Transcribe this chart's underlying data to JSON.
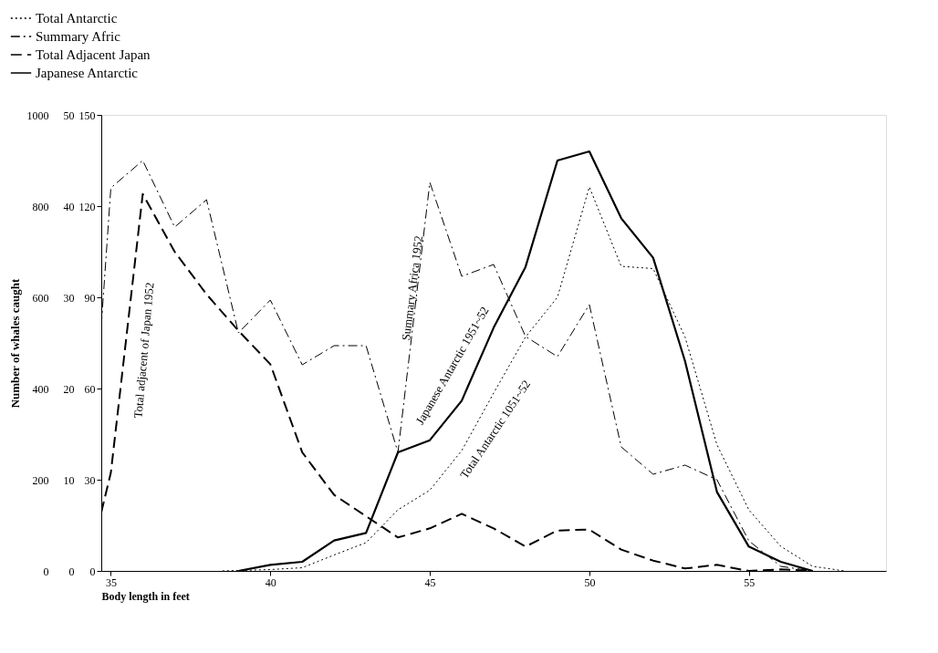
{
  "chart_data": {
    "type": "line",
    "xlabel": "Body length in feet",
    "ylabel": "Number of whales caught",
    "xlim": [
      34.7,
      59.3
    ],
    "xticks": [
      35,
      40,
      45,
      50,
      55
    ],
    "ylim": [
      0,
      1000
    ],
    "yticks": [
      0,
      200,
      400,
      600,
      800,
      1000
    ],
    "y2lim": [
      0,
      50
    ],
    "y2ticks": [
      0,
      10,
      20,
      30,
      40,
      50
    ],
    "y3lim": [
      0,
      150
    ],
    "y3ticks": [
      0,
      30,
      60,
      90,
      120,
      150
    ],
    "legend": "top left",
    "grid": false,
    "marker": "none",
    "series": [
      {
        "name": "Total Antarctic",
        "color": "#000000",
        "axis": "y",
        "line_style": "dotted",
        "x": [
          38.5,
          40,
          41,
          42,
          43,
          44,
          45,
          46,
          47,
          48,
          49,
          50,
          51,
          52,
          53,
          54,
          55,
          56,
          57,
          58
        ],
        "values": [
          0,
          3,
          7,
          35,
          62,
          134,
          177,
          264,
          390,
          513,
          600,
          842,
          668,
          663,
          513,
          277,
          134,
          54,
          10,
          0
        ]
      },
      {
        "name": "Summary Afric",
        "color": "#000000",
        "axis": "y2",
        "line_style": "dashdot",
        "x": [
          34.7,
          35,
          36,
          37,
          38,
          39,
          40,
          41,
          42,
          43,
          44,
          45,
          46,
          47,
          48,
          49,
          50,
          51,
          52,
          53,
          54,
          55,
          56,
          57
        ],
        "values": [
          26.9,
          42,
          45,
          37.7,
          40.7,
          26.1,
          29.7,
          22.6,
          24.7,
          24.7,
          13,
          42.6,
          32.3,
          33.6,
          25.7,
          23.5,
          29.2,
          13.6,
          10.6,
          11.6,
          10,
          3.3,
          0.5,
          0
        ]
      },
      {
        "name": "Total Adjacent Japan",
        "color": "#000000",
        "axis": "y3",
        "line_style": "dashed",
        "x": [
          34.7,
          35,
          36,
          37,
          38,
          39,
          40,
          41,
          42,
          43,
          44,
          45,
          46,
          47,
          48,
          49,
          50,
          51,
          52,
          53,
          54,
          55,
          56,
          57
        ],
        "values": [
          19.3,
          32.3,
          124,
          105,
          91,
          79,
          68,
          39,
          25,
          18,
          11,
          14,
          18.8,
          14,
          8,
          13.3,
          13.6,
          7,
          3.4,
          0.8,
          2,
          0,
          0.5,
          0
        ]
      },
      {
        "name": "Japanese Antarctic",
        "color": "#000000",
        "axis": "y3",
        "line_style": "solid",
        "x": [
          39,
          40,
          41,
          42,
          43,
          44,
          45,
          46,
          47,
          48,
          49,
          50,
          51,
          52,
          53,
          54,
          55,
          56,
          57
        ],
        "values": [
          0,
          2,
          3,
          10,
          12.5,
          39,
          43,
          56,
          80,
          100,
          135,
          138,
          116,
          103,
          69,
          26,
          8,
          3,
          0
        ]
      }
    ],
    "annotations": [
      "Total adjacent of Japan 1952",
      "Summary Africa 1952",
      "Japanese Antarctic 1951~52",
      "Total Antarctic 1051~52"
    ]
  }
}
